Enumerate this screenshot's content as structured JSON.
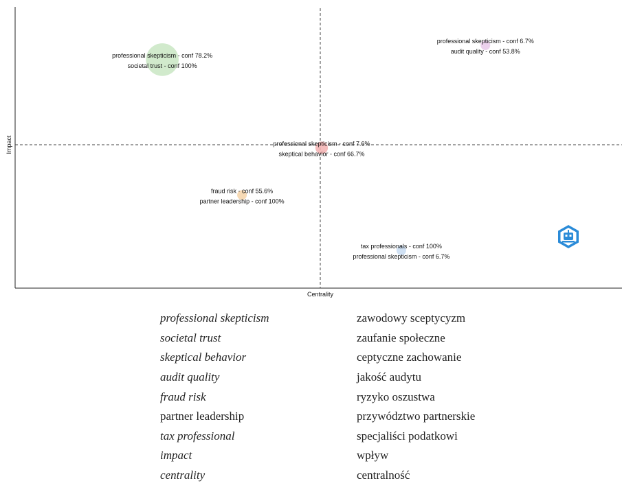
{
  "colors": {
    "cluster_green": "#c9e6c3",
    "cluster_pink": "#e9c9ea",
    "cluster_red": "#f3b0b0",
    "cluster_orange": "#f6d3a8",
    "cluster_blue": "#c8dcf2",
    "logo_blue": "#2a8bd8"
  },
  "chart_data": {
    "type": "scatter",
    "xlabel": "Centrality",
    "ylabel": "Impact",
    "quadrant_lines": "dashed",
    "points": [
      {
        "centrality": 0.14,
        "impact": 0.93,
        "size": 3.4,
        "color": "#c9e6c3",
        "labels": [
          "professional skepticism - conf 78.2%",
          "societal trust - conf 100%"
        ]
      },
      {
        "centrality": 0.87,
        "impact": 1.0,
        "size": 1.0,
        "color": "#e9c9ea",
        "labels": [
          "professional skepticism - conf 6.7%",
          "audit quality - conf 53.8%"
        ]
      },
      {
        "centrality": 0.5,
        "impact": 0.5,
        "size": 1.3,
        "color": "#f3b0b0",
        "labels": [
          "professional skepticism - conf 7.6%",
          "skeptical behavior - conf 66.7%"
        ]
      },
      {
        "centrality": 0.32,
        "impact": 0.27,
        "size": 1.0,
        "color": "#f6d3a8",
        "labels": [
          "fraud risk - conf 55.6%",
          "partner leadership - conf 100%"
        ]
      },
      {
        "centrality": 0.68,
        "impact": 0.0,
        "size": 1.0,
        "color": "#c8dcf2",
        "labels": [
          "tax professionals - conf 100%",
          "professional skepticism - conf 6.7%"
        ]
      }
    ]
  },
  "glossary": [
    {
      "en": "professional skepticism",
      "pl": "zawodowy sceptycyzm",
      "italic": true
    },
    {
      "en": "societal trust",
      "pl": "zaufanie społeczne",
      "italic": true
    },
    {
      "en": "skeptical behavior",
      "pl": "ceptyczne zachowanie",
      "italic": true
    },
    {
      "en": "audit quality",
      "pl": "jakość audytu",
      "italic": true
    },
    {
      "en": "fraud risk",
      "pl": "ryzyko oszustwa",
      "italic": true
    },
    {
      "en": "partner leadership",
      "pl": "przywództwo partnerskie",
      "italic": false
    },
    {
      "en": "tax professional",
      "pl": "specjaliści podatkowi",
      "italic": true
    },
    {
      "en": "impact",
      "pl": "wpływ",
      "italic": true
    },
    {
      "en": "centrality",
      "pl": "centralność",
      "italic": true
    }
  ],
  "logo": {
    "icon": "robot-head-hexagon-icon"
  }
}
